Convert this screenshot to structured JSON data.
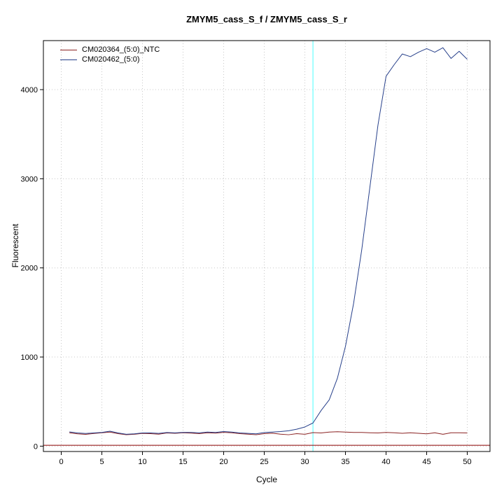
{
  "chart_data": {
    "type": "line",
    "title": "ZMYM5_cass_S_f / ZMYM5_cass_S_r",
    "xlabel": "Cycle",
    "ylabel": "Fluorescent",
    "xlim": [
      -2.2,
      52.8
    ],
    "ylim": [
      -60,
      4550
    ],
    "x_ticks": [
      0,
      5,
      10,
      15,
      20,
      25,
      30,
      35,
      40,
      45,
      50
    ],
    "y_ticks": [
      0,
      1000,
      2000,
      3000,
      4000
    ],
    "grid": "dotted",
    "legend_position": "top-left",
    "colors": {
      "grid": "#c8c8c8",
      "axis": "#000000",
      "background": "#ffffff"
    },
    "ct_line": {
      "x": 31,
      "color": "#7fffff"
    },
    "threshold_line": {
      "y": 10,
      "color": "#8b0000"
    },
    "x_start": 1,
    "series": [
      {
        "name": "CM020364_(5:0)_NTC",
        "color": "#8b2323",
        "values": [
          150,
          138,
          132,
          142,
          150,
          158,
          140,
          128,
          133,
          143,
          140,
          134,
          148,
          144,
          150,
          146,
          140,
          150,
          146,
          155,
          150,
          140,
          134,
          128,
          140,
          145,
          134,
          128,
          140,
          133,
          152,
          148,
          158,
          162,
          158,
          154,
          154,
          150,
          148,
          154,
          150,
          144,
          150,
          144,
          138,
          150,
          133,
          150,
          150,
          148
        ]
      },
      {
        "name": "CM020462_(5:0)",
        "color": "#27408b",
        "values": [
          160,
          148,
          142,
          148,
          154,
          168,
          148,
          133,
          138,
          148,
          148,
          143,
          153,
          149,
          154,
          154,
          149,
          158,
          154,
          164,
          158,
          148,
          143,
          138,
          153,
          158,
          164,
          173,
          190,
          215,
          260,
          400,
          520,
          760,
          1120,
          1600,
          2200,
          2900,
          3600,
          4150,
          4280,
          4400,
          4370,
          4420,
          4460,
          4420,
          4470,
          4350,
          4430,
          4340
        ]
      }
    ]
  }
}
